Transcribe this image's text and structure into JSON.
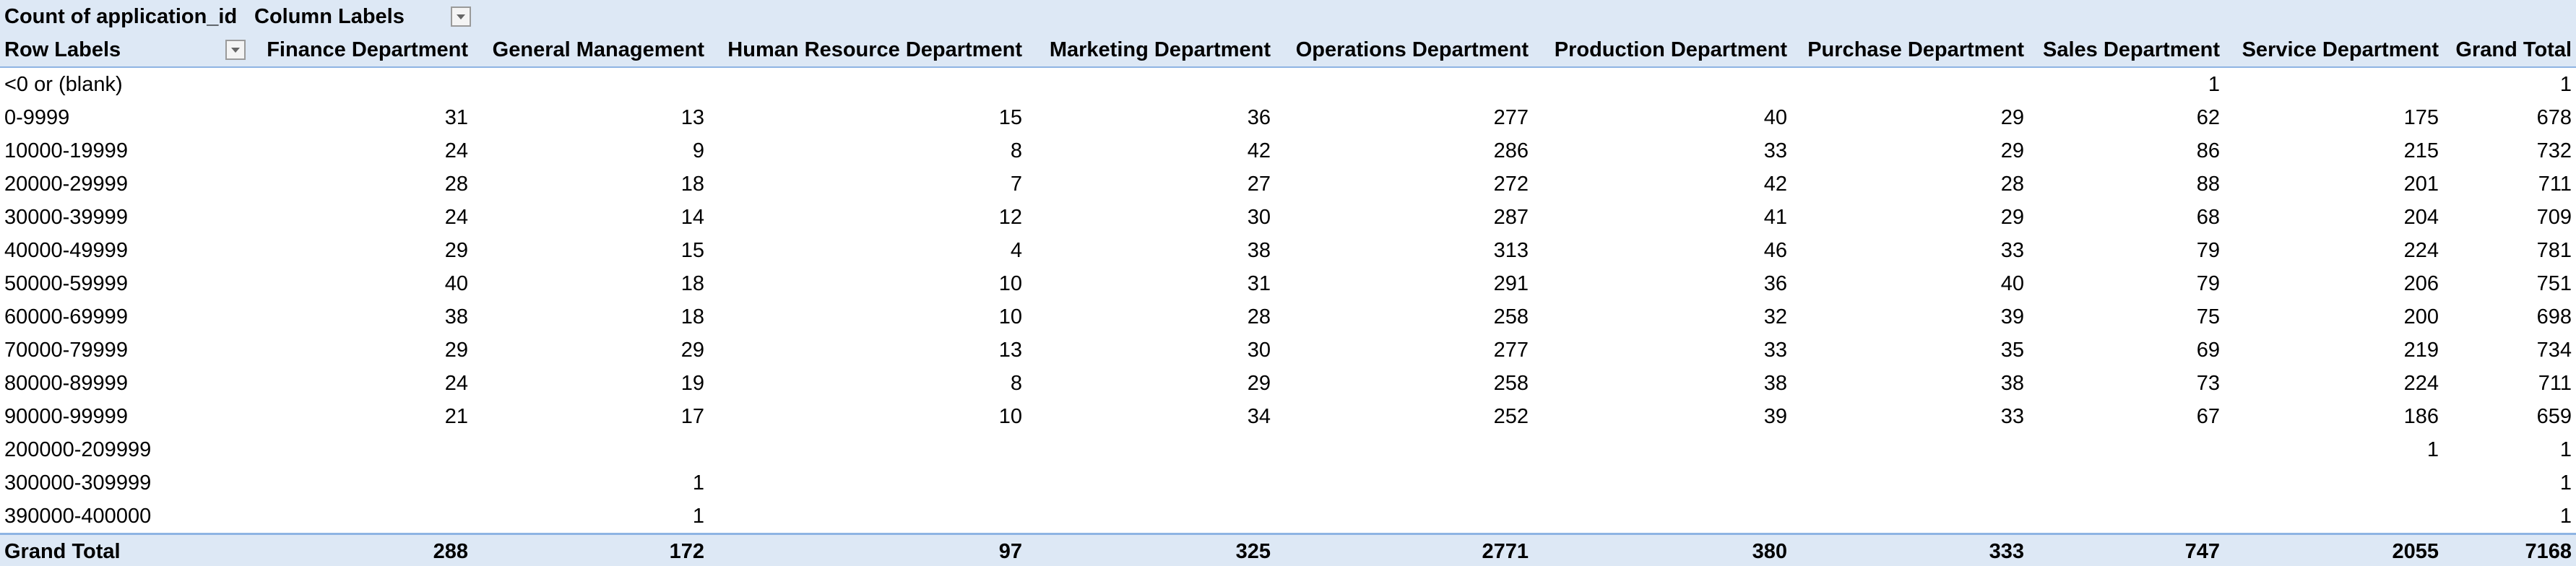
{
  "header": {
    "value_label": "Count of application_id",
    "column_label": "Column Labels",
    "row_label": "Row Labels"
  },
  "table": {
    "columns": [
      "Finance Department",
      "General Management",
      "Human Resource Department",
      "Marketing Department",
      "Operations Department",
      "Production Department",
      "Purchase Department",
      "Sales Department",
      "Service Department",
      "Grand Total"
    ],
    "rows": [
      {
        "label": "<0 or (blank)",
        "values": [
          null,
          null,
          null,
          null,
          null,
          null,
          null,
          1,
          null,
          1
        ]
      },
      {
        "label": "0-9999",
        "values": [
          31,
          13,
          15,
          36,
          277,
          40,
          29,
          62,
          175,
          678
        ]
      },
      {
        "label": "10000-19999",
        "values": [
          24,
          9,
          8,
          42,
          286,
          33,
          29,
          86,
          215,
          732
        ]
      },
      {
        "label": "20000-29999",
        "values": [
          28,
          18,
          7,
          27,
          272,
          42,
          28,
          88,
          201,
          711
        ]
      },
      {
        "label": "30000-39999",
        "values": [
          24,
          14,
          12,
          30,
          287,
          41,
          29,
          68,
          204,
          709
        ]
      },
      {
        "label": "40000-49999",
        "values": [
          29,
          15,
          4,
          38,
          313,
          46,
          33,
          79,
          224,
          781
        ]
      },
      {
        "label": "50000-59999",
        "values": [
          40,
          18,
          10,
          31,
          291,
          36,
          40,
          79,
          206,
          751
        ]
      },
      {
        "label": "60000-69999",
        "values": [
          38,
          18,
          10,
          28,
          258,
          32,
          39,
          75,
          200,
          698
        ]
      },
      {
        "label": "70000-79999",
        "values": [
          29,
          29,
          13,
          30,
          277,
          33,
          35,
          69,
          219,
          734
        ]
      },
      {
        "label": "80000-89999",
        "values": [
          24,
          19,
          8,
          29,
          258,
          38,
          38,
          73,
          224,
          711
        ]
      },
      {
        "label": "90000-99999",
        "values": [
          21,
          17,
          10,
          34,
          252,
          39,
          33,
          67,
          186,
          659
        ]
      },
      {
        "label": "200000-209999",
        "values": [
          null,
          null,
          null,
          null,
          null,
          null,
          null,
          null,
          1,
          1
        ]
      },
      {
        "label": "300000-309999",
        "values": [
          null,
          1,
          null,
          null,
          null,
          null,
          null,
          null,
          null,
          1
        ]
      },
      {
        "label": "390000-400000",
        "values": [
          null,
          1,
          null,
          null,
          null,
          null,
          null,
          null,
          null,
          1
        ]
      }
    ],
    "grand_total_row": {
      "label": "Grand Total",
      "values": [
        288,
        172,
        97,
        325,
        2771,
        380,
        333,
        747,
        2055,
        7168
      ]
    }
  }
}
